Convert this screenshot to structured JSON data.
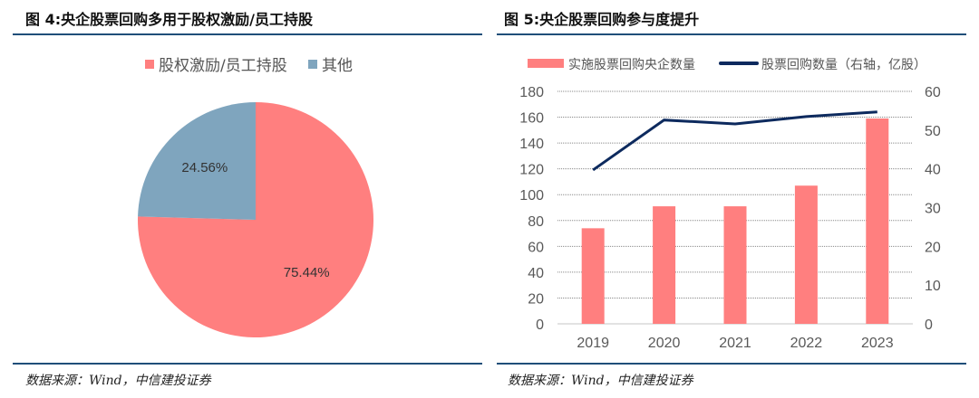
{
  "left": {
    "title": "图 4:央企股票回购多用于股权激励/员工持股",
    "source": "数据来源：Wind，中信建投证券"
  },
  "right": {
    "title": "图 5:央企股票回购参与度提升",
    "source": "数据来源：Wind，中信建投证券"
  },
  "chart_data": [
    {
      "type": "pie",
      "labels": [
        "股权激励/员工持股",
        "其他"
      ],
      "values": [
        75.44,
        24.56
      ],
      "data_labels": [
        "75.44%",
        "24.56%"
      ],
      "colors": [
        "#ff7f7f",
        "#7fa5be"
      ],
      "legend": "top"
    },
    {
      "type": "bar+line",
      "categories": [
        "2019",
        "2020",
        "2021",
        "2022",
        "2023"
      ],
      "series": [
        {
          "name": "实施股票回购央企数量",
          "type": "bar",
          "axis": "left",
          "values": [
            74,
            91,
            91,
            107,
            159
          ],
          "color": "#ff7f7f"
        },
        {
          "name": "股票回购数量（右轴，亿股）",
          "type": "line",
          "axis": "right",
          "values": [
            39.7,
            52.6,
            51.6,
            53.5,
            54.7
          ],
          "color": "#0d2a5e"
        }
      ],
      "yleft": {
        "range": [
          0,
          180
        ],
        "ticks": [
          "0",
          "20",
          "40",
          "60",
          "80",
          "100",
          "120",
          "140",
          "160",
          "180"
        ]
      },
      "yright": {
        "range": [
          0,
          60
        ],
        "ticks": [
          "0",
          "10",
          "20",
          "30",
          "40",
          "50",
          "60"
        ]
      },
      "grid": true,
      "legend": "top"
    }
  ]
}
